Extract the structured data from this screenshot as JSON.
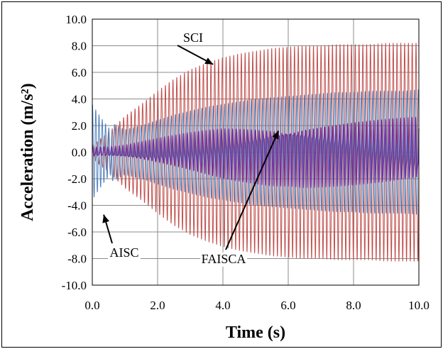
{
  "chart_data": {
    "type": "line",
    "title": "",
    "xlabel": "Time (s)",
    "ylabel": "Acceleration (m/s²)",
    "xlim": [
      0,
      10
    ],
    "ylim": [
      -10,
      10
    ],
    "xticks": [
      0,
      2,
      4,
      6,
      8,
      10
    ],
    "yticks": [
      -10,
      -8,
      -6,
      -4,
      -2,
      0,
      2,
      4,
      6,
      8,
      10
    ],
    "xtick_labels": [
      "0.0",
      "2.0",
      "4.0",
      "6.0",
      "8.0",
      "10.0"
    ],
    "ytick_labels": [
      "-10.0",
      "-8.0",
      "-6.0",
      "-4.0",
      "-2.0",
      "0.0",
      "2.0",
      "4.0",
      "6.0",
      "8.0",
      "10.0"
    ],
    "grid": true,
    "legend": "none",
    "series": [
      {
        "name": "SCI",
        "color": "#c0504d",
        "x": [
          0.0,
          0.5,
          1.0,
          1.5,
          2.0,
          2.5,
          3.0,
          3.5,
          4.0,
          4.5,
          5.0,
          5.5,
          6.0,
          6.5,
          7.0,
          7.5,
          8.0,
          8.5,
          9.0,
          9.5,
          10.0
        ],
        "y_peak": [
          0.5,
          1.5,
          2.7,
          3.6,
          4.6,
          5.5,
          6.2,
          6.7,
          7.1,
          7.4,
          7.6,
          7.8,
          7.9,
          8.0,
          8.0,
          8.1,
          8.1,
          8.1,
          8.2,
          8.2,
          8.2
        ]
      },
      {
        "name": "AISC",
        "color": "#4f81bd",
        "x": [
          0.0,
          0.5,
          1.0,
          1.5,
          2.0,
          2.5,
          3.0,
          3.5,
          4.0,
          4.5,
          5.0,
          5.5,
          6.0,
          6.5,
          7.0,
          7.5,
          8.0,
          8.5,
          9.0,
          9.5,
          10.0
        ],
        "y_peak": [
          3.6,
          2.3,
          1.7,
          2.0,
          2.4,
          2.8,
          3.1,
          3.4,
          3.6,
          3.8,
          4.0,
          4.1,
          4.2,
          4.3,
          4.4,
          4.5,
          4.5,
          4.6,
          4.6,
          4.6,
          4.7
        ]
      },
      {
        "name": "FAISCA",
        "color": "#7030a0",
        "x": [
          0.0,
          0.5,
          1.0,
          1.5,
          2.0,
          2.5,
          3.0,
          3.5,
          4.0,
          4.5,
          5.0,
          5.5,
          6.0,
          6.5,
          7.0,
          7.5,
          8.0,
          8.5,
          9.0,
          9.5,
          10.0
        ],
        "y_peak": [
          0.3,
          0.3,
          0.4,
          0.6,
          0.8,
          1.0,
          1.2,
          1.4,
          1.6,
          1.7,
          1.8,
          1.9,
          1.9,
          2.0,
          2.0,
          2.0,
          2.0,
          2.0,
          2.0,
          2.0,
          2.0
        ]
      }
    ],
    "annotations": [
      {
        "text": "SCI",
        "points_to": [
          3.7,
          6.6
        ]
      },
      {
        "text": "AISC",
        "points_to": [
          0.35,
          -4.7
        ]
      },
      {
        "text": "FAISCA",
        "points_to": [
          5.7,
          1.6
        ]
      }
    ]
  }
}
